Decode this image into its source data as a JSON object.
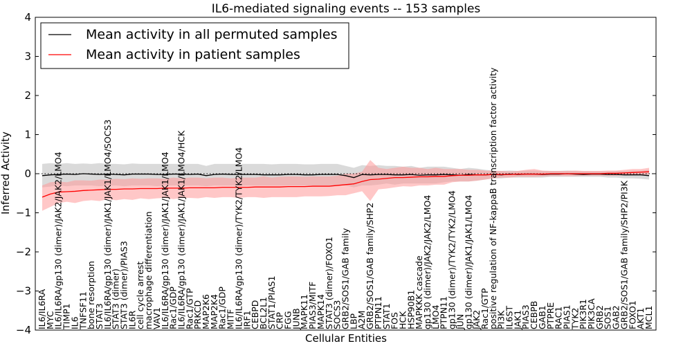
{
  "chart_data": {
    "type": "line",
    "title": "IL6-mediated signaling events -- 153 samples",
    "xlabel": "Cellular Entities",
    "ylabel": "Inferred Activity",
    "ylim": [
      -4,
      4
    ],
    "yticks": [
      -4,
      -3,
      -2,
      -1,
      0,
      1,
      2,
      3,
      4
    ],
    "grid": false,
    "legend_position": "top-left",
    "categories": [
      "IL6/IL6RA",
      "MYC",
      "IL6/IL6RA/gp130 (dimer)/JAK2/JAK2/LMO4",
      "TIMP1",
      "IL6",
      "TNFSF11",
      "bone resorption",
      "STAT3",
      "IL6/IL6RA/gp130 (dimer)/JAK1/JAK1/LMO4/SOCS3",
      "STAT3 (dimer)",
      "STAT3 (dimer)/PIAS3",
      "IL6R",
      "cell cycle arrest",
      "macrophage differentiation",
      "VAV1",
      "IL6/IL6RA/gp130 (dimer)/JAK1/JAK1/LMO4",
      "Rac1/GDP",
      "IL6/IL6RA/gp130 (dimer)/JAK1/JAK1/LMO4/HCK",
      "Rac1/GTP",
      "PRKCD",
      "MAP2K6",
      "MAP2K4",
      "Rac1/GDP",
      "MITF",
      "IL6/IL6RA/gp130 (dimer)/TYK2/TYK2/LMO4",
      "IRF1",
      "CEBPD",
      "BCL2L1",
      "STAT1/PIAS1",
      "CRP",
      "FGG",
      "JUNB",
      "MAPK11",
      "PIAS3/MITF",
      "MAPK14",
      "STAT3 (dimer)/FOXO1",
      "SOCS3",
      "GRB2/SOS1/GAB family",
      "LBP",
      "A2M",
      "GRB2/SOS1/GAB family/SHP2",
      "PTPN11",
      "STAT1",
      "FOS",
      "HCK",
      "HSP90B1",
      "MAPKKK cascade",
      "gp130 (dimer)/JAK2/JAK2/LMO4",
      "LMO4",
      "PTPN11",
      "gp130 (dimer)/TYK2/TYK2/LMO4",
      "JUN",
      "gp130 (dimer)/JAK1/JAK1/LMO4",
      "JAK2",
      "Rac1/GTP",
      "positive regulation of NF-kappaB transcription factor activity",
      "PI3K",
      "IL6ST",
      "JAK1",
      "PIAS3",
      "CEBPB",
      "GAB1",
      "PTPRE",
      "RAC1",
      "PIAS1",
      "TYK2",
      "PIK3R1",
      "PIK3CA",
      "GRB2",
      "SOS1",
      "GAB2",
      "GRB2/SOS1/GAB family/SHP2/PI3K",
      "FOXO1",
      "AKT1",
      "MCL1"
    ],
    "series": [
      {
        "name": "Mean activity in all permuted samples",
        "color": "#000000",
        "band_color": "#bbbbbb",
        "values": [
          -0.05,
          -0.03,
          -0.02,
          -0.01,
          -0.02,
          0.0,
          -0.01,
          -0.02,
          -0.01,
          -0.02,
          -0.03,
          -0.01,
          -0.01,
          -0.01,
          -0.02,
          -0.02,
          -0.01,
          -0.01,
          -0.02,
          -0.01,
          -0.05,
          -0.02,
          -0.01,
          -0.02,
          -0.02,
          -0.02,
          -0.02,
          -0.03,
          -0.03,
          -0.03,
          -0.02,
          -0.02,
          -0.03,
          -0.03,
          -0.02,
          -0.02,
          -0.02,
          -0.05,
          -0.1,
          -0.02,
          -0.03,
          -0.02,
          -0.02,
          -0.03,
          -0.03,
          -0.02,
          -0.04,
          -0.03,
          -0.03,
          -0.02,
          -0.03,
          -0.04,
          -0.02,
          -0.03,
          -0.03,
          -0.02,
          -0.03,
          -0.01,
          -0.02,
          -0.01,
          -0.01,
          -0.02,
          -0.01,
          -0.01,
          0.0,
          -0.01,
          -0.02,
          -0.01,
          -0.01,
          -0.02,
          -0.02,
          -0.03,
          -0.03,
          -0.03,
          -0.05
        ],
        "lower": [
          -0.35,
          -0.33,
          -0.3,
          -0.32,
          -0.3,
          -0.3,
          -0.3,
          -0.32,
          -0.3,
          -0.3,
          -0.32,
          -0.3,
          -0.3,
          -0.3,
          -0.32,
          -0.3,
          -0.3,
          -0.3,
          -0.3,
          -0.3,
          -0.32,
          -0.3,
          -0.3,
          -0.3,
          -0.3,
          -0.3,
          -0.3,
          -0.3,
          -0.3,
          -0.3,
          -0.3,
          -0.3,
          -0.3,
          -0.3,
          -0.3,
          -0.3,
          -0.3,
          -0.3,
          -0.35,
          -0.3,
          -0.3,
          -0.28,
          -0.25,
          -0.28,
          -0.25,
          -0.25,
          -0.25,
          -0.25,
          -0.25,
          -0.22,
          -0.2,
          -0.2,
          -0.2,
          -0.18,
          -0.15,
          -0.12,
          -0.12,
          -0.1,
          -0.1,
          -0.1,
          -0.1,
          -0.1,
          -0.08,
          -0.08,
          -0.08,
          -0.08,
          -0.08,
          -0.08,
          -0.08,
          -0.1,
          -0.1,
          -0.12,
          -0.12,
          -0.13,
          -0.15
        ],
        "upper": [
          0.25,
          0.27,
          0.25,
          0.27,
          0.25,
          0.26,
          0.25,
          0.27,
          0.25,
          0.25,
          0.24,
          0.26,
          0.25,
          0.25,
          0.25,
          0.25,
          0.25,
          0.25,
          0.25,
          0.25,
          0.2,
          0.25,
          0.25,
          0.25,
          0.25,
          0.25,
          0.25,
          0.25,
          0.24,
          0.25,
          0.25,
          0.25,
          0.24,
          0.24,
          0.25,
          0.25,
          0.25,
          0.2,
          0.15,
          0.22,
          0.2,
          0.22,
          0.2,
          0.2,
          0.18,
          0.2,
          0.15,
          0.18,
          0.18,
          0.18,
          0.15,
          0.12,
          0.15,
          0.13,
          0.1,
          0.08,
          0.07,
          0.08,
          0.07,
          0.08,
          0.08,
          0.07,
          0.07,
          0.07,
          0.08,
          0.07,
          0.06,
          0.06,
          0.06,
          0.06,
          0.07,
          0.07,
          0.08,
          0.08,
          0.1
        ]
      },
      {
        "name": "Mean activity in patient samples",
        "color": "#ff0000",
        "band_color": "#ff9999",
        "values": [
          -0.6,
          -0.52,
          -0.47,
          -0.46,
          -0.45,
          -0.43,
          -0.42,
          -0.41,
          -0.4,
          -0.4,
          -0.39,
          -0.39,
          -0.38,
          -0.38,
          -0.38,
          -0.37,
          -0.37,
          -0.37,
          -0.36,
          -0.36,
          -0.36,
          -0.36,
          -0.35,
          -0.35,
          -0.35,
          -0.35,
          -0.34,
          -0.34,
          -0.34,
          -0.34,
          -0.33,
          -0.33,
          -0.33,
          -0.32,
          -0.32,
          -0.32,
          -0.3,
          -0.28,
          -0.26,
          -0.2,
          -0.15,
          -0.14,
          -0.12,
          -0.1,
          -0.1,
          -0.09,
          -0.08,
          -0.08,
          -0.07,
          -0.07,
          -0.05,
          -0.04,
          -0.04,
          -0.03,
          -0.03,
          -0.02,
          -0.02,
          -0.02,
          -0.01,
          -0.01,
          -0.01,
          -0.01,
          0.0,
          0.0,
          0.0,
          0.0,
          0.0,
          0.0,
          0.0,
          0.01,
          0.01,
          0.02,
          0.03,
          0.04,
          0.05
        ],
        "lower": [
          -0.95,
          -0.85,
          -0.75,
          -0.72,
          -0.75,
          -0.7,
          -0.68,
          -0.7,
          -0.65,
          -0.68,
          -0.65,
          -0.67,
          -0.63,
          -0.65,
          -0.63,
          -0.62,
          -0.65,
          -0.62,
          -0.62,
          -0.63,
          -0.6,
          -0.62,
          -0.6,
          -0.6,
          -0.62,
          -0.6,
          -0.6,
          -0.62,
          -0.6,
          -0.6,
          -0.6,
          -0.6,
          -0.58,
          -0.58,
          -0.58,
          -0.57,
          -0.55,
          -0.55,
          -0.5,
          -0.45,
          -0.7,
          -0.4,
          -0.38,
          -0.35,
          -0.32,
          -0.33,
          -0.3,
          -0.3,
          -0.28,
          -0.28,
          -0.22,
          -0.2,
          -0.2,
          -0.18,
          -0.15,
          -0.12,
          -0.1,
          -0.1,
          -0.08,
          -0.08,
          -0.08,
          -0.07,
          -0.06,
          -0.06,
          -0.06,
          -0.06,
          -0.05,
          -0.05,
          -0.05,
          -0.05,
          -0.05,
          -0.04,
          -0.03,
          -0.03,
          -0.02
        ],
        "upper": [
          -0.3,
          -0.22,
          -0.2,
          -0.22,
          -0.17,
          -0.17,
          -0.18,
          -0.15,
          -0.15,
          -0.13,
          -0.14,
          -0.12,
          -0.13,
          -0.12,
          -0.12,
          -0.13,
          -0.1,
          -0.12,
          -0.1,
          -0.1,
          -0.12,
          -0.1,
          -0.1,
          -0.12,
          -0.1,
          -0.1,
          -0.1,
          -0.07,
          -0.1,
          -0.08,
          -0.07,
          -0.07,
          -0.08,
          -0.07,
          -0.07,
          -0.07,
          -0.05,
          0.0,
          0.0,
          0.05,
          0.35,
          0.15,
          0.12,
          0.15,
          0.18,
          0.15,
          0.15,
          0.12,
          0.15,
          0.12,
          0.12,
          0.12,
          0.1,
          0.1,
          0.08,
          0.07,
          0.07,
          0.06,
          0.07,
          0.1,
          0.12,
          0.08,
          0.07,
          0.07,
          0.07,
          0.08,
          0.07,
          0.07,
          0.07,
          0.08,
          0.08,
          0.1,
          0.12,
          0.12,
          0.15
        ]
      }
    ]
  }
}
